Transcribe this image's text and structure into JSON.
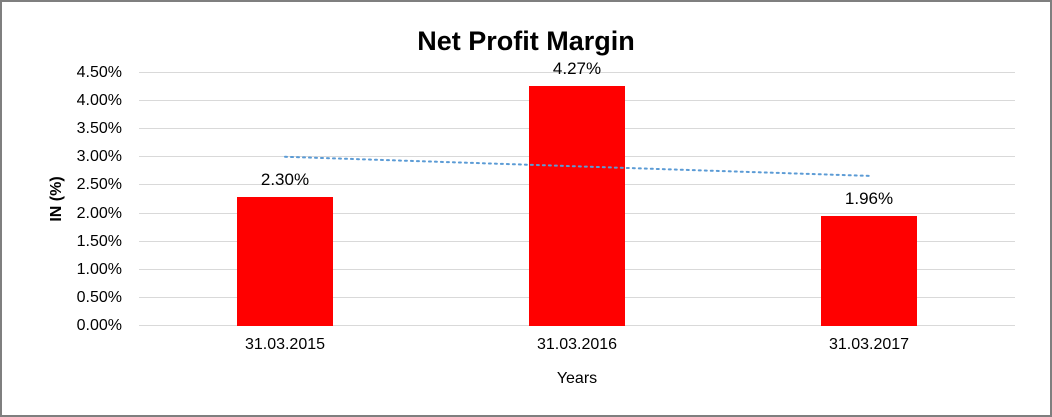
{
  "chart_data": {
    "type": "bar",
    "title": "Net Profit Margin",
    "xlabel": "Years",
    "ylabel": "IN (%)",
    "categories": [
      "31.03.2015",
      "31.03.2016",
      "31.03.2017"
    ],
    "values": [
      2.3,
      4.27,
      1.96
    ],
    "data_labels": [
      "2.30%",
      "4.27%",
      "1.96%"
    ],
    "ylim": [
      0,
      4.5
    ],
    "ytick_step": 0.5,
    "ytick_labels": [
      "0.00%",
      "0.50%",
      "1.00%",
      "1.50%",
      "2.00%",
      "2.50%",
      "3.00%",
      "3.50%",
      "4.00%",
      "4.50%"
    ],
    "grid": true,
    "legend": "none",
    "bar_color": "#ff0000",
    "gridline_color": "#d9d9d9",
    "trendline": {
      "style": "dotted",
      "color": "#5b9bd5",
      "start_value": 3.01,
      "end_value": 2.67
    }
  }
}
